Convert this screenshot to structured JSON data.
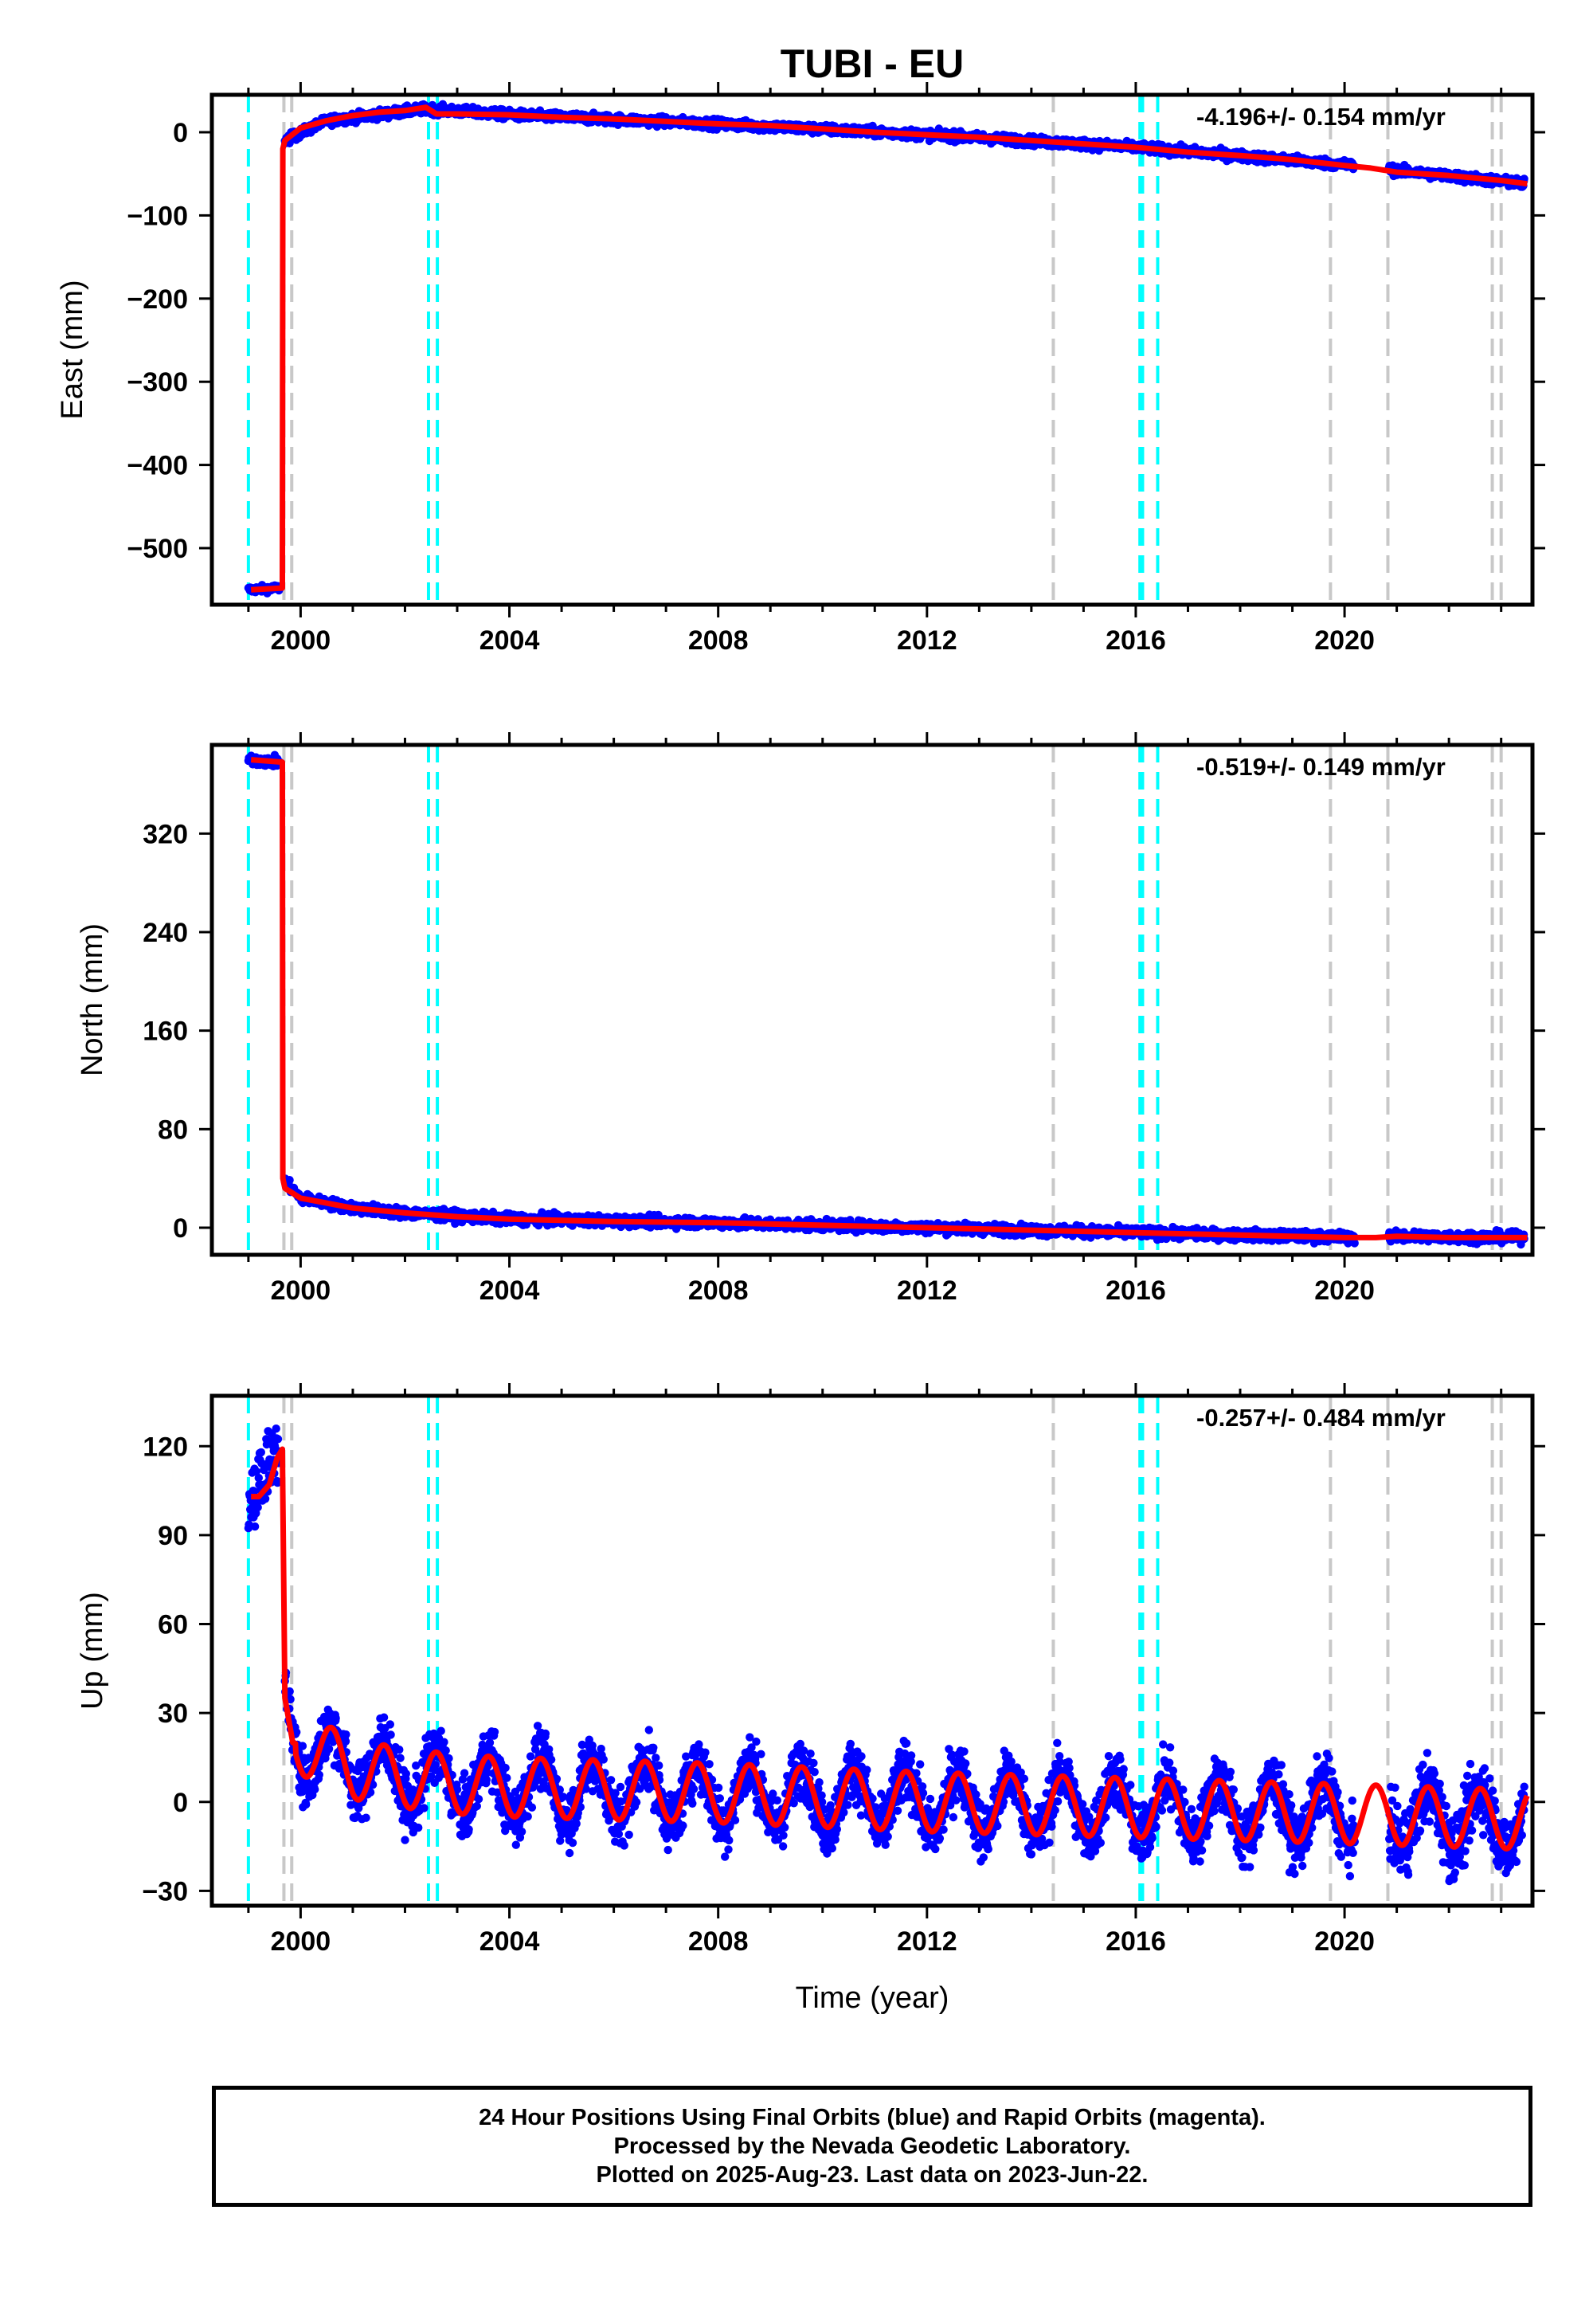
{
  "title": "TUBI - EU",
  "chart_data": [
    {
      "type": "scatter",
      "ylabel": "East (mm)",
      "xlabel": "",
      "rate_label": "-4.196+/- 0.154 mm/yr",
      "xlim": [
        1998.3,
        2023.6
      ],
      "ylim": [
        -568,
        45
      ],
      "x_ticks": [
        2000,
        2004,
        2008,
        2012,
        2016,
        2020
      ],
      "y_ticks": [
        0,
        -100,
        -200,
        -300,
        -400,
        -500
      ],
      "observations_color": "#0000ff",
      "model_color": "#ff0000",
      "model_series": {
        "name": "model",
        "x": [
          1999.05,
          1999.65,
          1999.66,
          1999.7,
          2000.0,
          2000.5,
          2001.0,
          2001.5,
          2002.0,
          2002.4,
          2002.6,
          2003.0,
          2004.0,
          2005.0,
          2006.0,
          2007.0,
          2008.0,
          2009.0,
          2010.0,
          2011.0,
          2012.0,
          2013.0,
          2014.0,
          2015.0,
          2016.0,
          2017.0,
          2018.0,
          2019.0,
          2020.0,
          2020.5,
          2021.0,
          2022.0,
          2023.0,
          2023.5
        ],
        "y": [
          -550,
          -548,
          -20,
          -10,
          5,
          14,
          20,
          24,
          26,
          30,
          22,
          22,
          21,
          18,
          16,
          13,
          10,
          8,
          4,
          0,
          -3,
          -6,
          -10,
          -14,
          -18,
          -24,
          -28,
          -33,
          -40,
          -43,
          -48,
          -52,
          -58,
          -62
        ]
      },
      "observations": {
        "name": "24 Hour Positions",
        "segments": [
          {
            "x_range": [
              1999.0,
              1999.6
            ],
            "trend": [
              [
                1999.0,
                -550
              ],
              [
                1999.6,
                -548
              ]
            ],
            "scatter": 3
          },
          {
            "x_range": [
              1999.7,
              2020.2
            ],
            "trend": [
              [
                1999.7,
                -10
              ],
              [
                2000.5,
                14
              ],
              [
                2002.4,
                28
              ],
              [
                2004.0,
                21
              ],
              [
                2008.0,
                10
              ],
              [
                2012.0,
                -3
              ],
              [
                2016.0,
                -18
              ],
              [
                2020.2,
                -40
              ]
            ],
            "scatter": 4
          },
          {
            "x_range": [
              2020.85,
              2023.45
            ],
            "trend": [
              [
                2020.85,
                -45
              ],
              [
                2023.45,
                -62
              ]
            ],
            "scatter": 4
          }
        ]
      },
      "cyan_events": [
        1999.0,
        2002.45,
        2002.62,
        2016.08,
        2016.13,
        2016.42
      ],
      "gray_events": [
        1999.68,
        1999.83,
        2014.42,
        2019.73,
        2020.83,
        2022.83,
        2023.0
      ]
    },
    {
      "type": "scatter",
      "ylabel": "North (mm)",
      "xlabel": "",
      "rate_label": "-0.519+/- 0.149 mm/yr",
      "xlim": [
        1998.3,
        2023.6
      ],
      "ylim": [
        -22,
        392
      ],
      "x_ticks": [
        2000,
        2004,
        2008,
        2012,
        2016,
        2020
      ],
      "y_ticks": [
        0,
        80,
        160,
        240,
        320
      ],
      "observations_color": "#0000ff",
      "model_color": "#ff0000",
      "model_series": {
        "name": "model",
        "x": [
          1999.05,
          1999.65,
          1999.66,
          1999.7,
          2000.0,
          2001.0,
          2002.0,
          2003.0,
          2004.0,
          2006.0,
          2008.0,
          2010.0,
          2012.0,
          2014.0,
          2016.0,
          2018.0,
          2020.0,
          2020.6,
          2021.0,
          2022.0,
          2023.0,
          2023.5
        ],
        "y": [
          380,
          378,
          40,
          32,
          24,
          16,
          12,
          9,
          7,
          5,
          4,
          2,
          0,
          -2,
          -4,
          -6,
          -8,
          -8,
          -7,
          -8,
          -8,
          -8
        ]
      },
      "observations": {
        "name": "24 Hour Positions",
        "segments": [
          {
            "x_range": [
              1999.0,
              1999.6
            ],
            "trend": [
              [
                1999.0,
                380
              ],
              [
                1999.6,
                378
              ]
            ],
            "scatter": 3
          },
          {
            "x_range": [
              1999.7,
              2020.2
            ],
            "trend": [
              [
                1999.7,
                38
              ],
              [
                2000.0,
                24
              ],
              [
                2001.0,
                16
              ],
              [
                2002.0,
                12
              ],
              [
                2004.0,
                7
              ],
              [
                2008.0,
                4
              ],
              [
                2012.0,
                0
              ],
              [
                2016.0,
                -4
              ],
              [
                2020.2,
                -8
              ]
            ],
            "scatter": 3
          },
          {
            "x_range": [
              2020.85,
              2023.45
            ],
            "trend": [
              [
                2020.85,
                -7
              ],
              [
                2023.45,
                -8
              ]
            ],
            "scatter": 3
          }
        ]
      },
      "cyan_events": [
        1999.0,
        2002.45,
        2002.62,
        2016.08,
        2016.13,
        2016.42
      ],
      "gray_events": [
        1999.68,
        1999.83,
        2014.42,
        2019.73,
        2020.83,
        2022.83,
        2023.0
      ]
    },
    {
      "type": "scatter",
      "ylabel": "Up (mm)",
      "xlabel": "Time (year)",
      "rate_label": "-0.257+/- 0.484 mm/yr",
      "xlim": [
        1998.3,
        2023.6
      ],
      "ylim": [
        -35,
        137
      ],
      "x_ticks": [
        2000,
        2004,
        2008,
        2012,
        2016,
        2020
      ],
      "y_ticks": [
        120,
        90,
        60,
        30,
        0,
        -30
      ],
      "observations_color": "#0000ff",
      "model_color": "#ff0000",
      "model_series": {
        "name": "model",
        "seasonal_amplitude": 10,
        "seasonal_peak_year_fraction": 0.6,
        "early_x": [
          1999.05,
          1999.2,
          1999.4,
          1999.55,
          1999.65
        ],
        "early_y": [
          103,
          103,
          107,
          116,
          119
        ],
        "trend": [
          [
            1999.7,
            35
          ],
          [
            1999.85,
            20
          ],
          [
            2000.5,
            16
          ],
          [
            2001.0,
            11
          ],
          [
            2002.0,
            8
          ],
          [
            2003.0,
            6
          ],
          [
            2004.0,
            5
          ],
          [
            2008.0,
            3
          ],
          [
            2012.0,
            0
          ],
          [
            2016.0,
            -2
          ],
          [
            2020.0,
            -4
          ],
          [
            2023.5,
            -6
          ]
        ]
      },
      "observations": {
        "name": "24 Hour Positions",
        "segments": [
          {
            "x_range": [
              1999.0,
              1999.6
            ],
            "trend": [
              [
                1999.0,
                102
              ],
              [
                1999.6,
                120
              ]
            ],
            "scatter": 8
          },
          {
            "x_range": [
              1999.7,
              2020.2
            ],
            "trend": [
              [
                1999.7,
                30
              ],
              [
                2000.0,
                18
              ],
              [
                2002.0,
                8
              ],
              [
                2004.0,
                5
              ],
              [
                2008.0,
                3
              ],
              [
                2012.0,
                0
              ],
              [
                2016.0,
                -2
              ],
              [
                2020.2,
                -4
              ]
            ],
            "scatter": 7,
            "seasonal": true
          },
          {
            "x_range": [
              2020.85,
              2023.45
            ],
            "trend": [
              [
                2020.85,
                -5
              ],
              [
                2023.45,
                -6
              ]
            ],
            "scatter": 8,
            "seasonal": true
          }
        ]
      },
      "cyan_events": [
        1999.0,
        2002.45,
        2002.62,
        2016.08,
        2016.13,
        2016.42
      ],
      "gray_events": [
        1999.68,
        1999.83,
        2014.42,
        2019.73,
        2020.83,
        2022.83,
        2023.0
      ]
    }
  ],
  "footer": {
    "line1": "24 Hour Positions Using Final Orbits (blue) and Rapid Orbits (magenta).",
    "line2": "Processed by the Nevada Geodetic Laboratory.",
    "line3": "Plotted on 2025-Aug-23. Last data on 2023-Jun-22."
  }
}
